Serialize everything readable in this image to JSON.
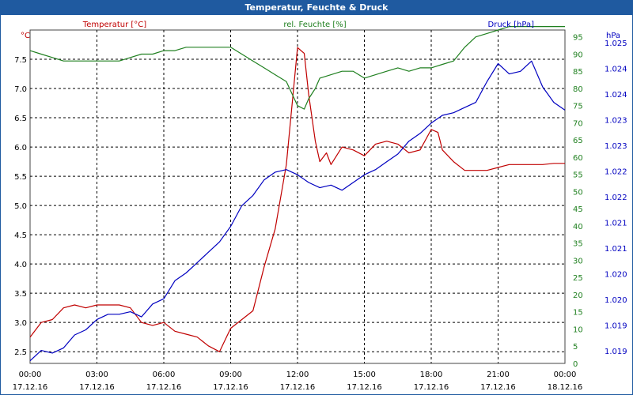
{
  "window": {
    "title": "Temperatur, Feuchte & Druck"
  },
  "colors": {
    "titlebar": "#1f5aa0",
    "temperature": "#c00000",
    "humidity": "#208020",
    "pressure": "#0000c0",
    "grid": "#000000"
  },
  "chart_data": {
    "type": "line",
    "grid": true,
    "legend": "top",
    "x_ticks": [
      {
        "time": "00:00",
        "date": "17.12.16"
      },
      {
        "time": "03:00",
        "date": "17.12.16"
      },
      {
        "time": "06:00",
        "date": "17.12.16"
      },
      {
        "time": "09:00",
        "date": "17.12.16"
      },
      {
        "time": "12:00",
        "date": "17.12.16"
      },
      {
        "time": "15:00",
        "date": "17.12.16"
      },
      {
        "time": "18:00",
        "date": "17.12.16"
      },
      {
        "time": "21:00",
        "date": "17.12.16"
      },
      {
        "time": "00:00",
        "date": "18.12.16"
      }
    ],
    "xlim": [
      0,
      24
    ],
    "axes": {
      "temperature": {
        "unit": "°C",
        "ylim": [
          2.3,
          8.0
        ],
        "ticks": [
          "2.5",
          "3.0",
          "3.5",
          "4.0",
          "4.5",
          "5.0",
          "5.5",
          "6.0",
          "6.5",
          "7.0",
          "7.5"
        ]
      },
      "humidity": {
        "unit": "%",
        "ylim": [
          0,
          97
        ],
        "ticks": [
          "0",
          "5",
          "10",
          "15",
          "20",
          "25",
          "30",
          "35",
          "40",
          "45",
          "50",
          "55",
          "60",
          "65",
          "70",
          "75",
          "80",
          "85",
          "90",
          "95"
        ]
      },
      "pressure": {
        "unit": "hPa",
        "ylim": [
          1018.95,
          1025.4
        ],
        "ticks": [
          "1.019",
          "1.019",
          "1.020",
          "1.020",
          "1.021",
          "1.021",
          "1.022",
          "1.022",
          "1.023",
          "1.023",
          "1.024",
          "1.024",
          "1.025"
        ]
      }
    },
    "series": [
      {
        "name": "Temperatur [°C]",
        "axis": "temperature",
        "x": [
          0,
          0.5,
          1,
          1.5,
          2,
          2.5,
          3,
          3.5,
          4,
          4.5,
          5,
          5.5,
          6,
          6.5,
          7,
          7.5,
          8,
          8.5,
          9,
          9.5,
          10,
          10.5,
          11,
          11.5,
          12,
          12.3,
          12.5,
          12.8,
          13,
          13.3,
          13.5,
          14,
          14.5,
          15,
          15.5,
          16,
          16.5,
          17,
          17.5,
          18,
          18.3,
          18.5,
          19,
          19.5,
          20,
          20.5,
          21,
          21.5,
          22,
          22.5,
          23,
          23.5,
          24
        ],
        "values": [
          2.75,
          3.0,
          3.05,
          3.25,
          3.3,
          3.25,
          3.3,
          3.3,
          3.3,
          3.25,
          3.0,
          2.95,
          3.0,
          2.85,
          2.8,
          2.75,
          2.6,
          2.5,
          2.9,
          3.05,
          3.2,
          3.95,
          4.6,
          5.7,
          7.7,
          7.6,
          6.9,
          6.1,
          5.75,
          5.9,
          5.7,
          6.0,
          5.95,
          5.85,
          6.05,
          6.1,
          6.05,
          5.9,
          5.95,
          6.3,
          6.25,
          5.95,
          5.75,
          5.6,
          5.6,
          5.6,
          5.65,
          5.7,
          5.7,
          5.7,
          5.7,
          5.72,
          5.72
        ]
      },
      {
        "name": "rel. Feuchte [%]",
        "axis": "humidity",
        "x": [
          0,
          0.5,
          1,
          1.5,
          2,
          2.5,
          3,
          3.5,
          4,
          4.5,
          5,
          5.5,
          6,
          6.5,
          7,
          7.5,
          8,
          8.5,
          9,
          9.5,
          10,
          10.5,
          11,
          11.5,
          12,
          12.3,
          12.5,
          12.8,
          13,
          13.5,
          14,
          14.5,
          15,
          15.5,
          16,
          16.5,
          17,
          17.5,
          18,
          18.5,
          19,
          19.5,
          20,
          20.5,
          21,
          21.5,
          22,
          22.5,
          23,
          23.5,
          24
        ],
        "values": [
          91,
          90,
          89,
          88,
          88,
          88,
          88,
          88,
          88,
          89,
          90,
          90,
          91,
          91,
          92,
          92,
          92,
          92,
          92,
          90,
          88,
          86,
          84,
          82,
          75,
          74,
          77,
          80,
          83,
          84,
          85,
          85,
          83,
          84,
          85,
          86,
          85,
          86,
          86,
          87,
          88,
          92,
          95,
          96,
          97,
          98,
          98,
          98,
          98,
          98,
          98
        ]
      },
      {
        "name": "Druck [hPa]",
        "axis": "pressure",
        "x": [
          0,
          0.5,
          1,
          1.5,
          2,
          2.5,
          3,
          3.5,
          4,
          4.5,
          5,
          5.5,
          6,
          6.5,
          7,
          7.5,
          8,
          8.5,
          9,
          9.5,
          10,
          10.5,
          11,
          11.5,
          12,
          12.5,
          13,
          13.5,
          14,
          14.5,
          15,
          15.5,
          16,
          16.5,
          17,
          17.5,
          18,
          18.5,
          19,
          19.5,
          20,
          20.5,
          21,
          21.5,
          22,
          22.5,
          23,
          23.5,
          24
        ],
        "values": [
          1019.0,
          1019.2,
          1019.15,
          1019.25,
          1019.5,
          1019.6,
          1019.8,
          1019.9,
          1019.9,
          1019.95,
          1019.85,
          1020.1,
          1020.2,
          1020.55,
          1020.7,
          1020.9,
          1021.1,
          1021.3,
          1021.6,
          1022.0,
          1022.2,
          1022.5,
          1022.65,
          1022.7,
          1022.6,
          1022.45,
          1022.35,
          1022.4,
          1022.3,
          1022.45,
          1022.6,
          1022.7,
          1022.85,
          1023.0,
          1023.25,
          1023.4,
          1023.6,
          1023.75,
          1023.8,
          1023.9,
          1024.0,
          1024.4,
          1024.75,
          1024.55,
          1024.6,
          1024.8,
          1024.3,
          1024.0,
          1023.85
        ]
      }
    ]
  }
}
